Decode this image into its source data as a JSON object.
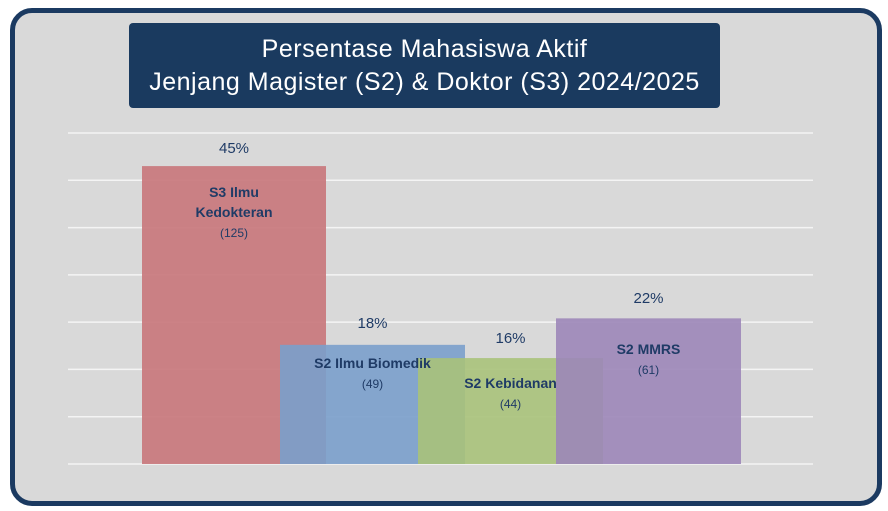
{
  "chart_data": {
    "type": "bar",
    "title": [
      "Persentase Mahasiswa Aktif",
      "Jenjang Magister (S2) & Doktor (S3) 2024/2025"
    ],
    "xlabel": "",
    "ylabel": "",
    "ylim": [
      0,
      50
    ],
    "grid": true,
    "bars": [
      {
        "name": "S3 Ilmu Kedokteran",
        "name_lines": [
          "S3 Ilmu",
          "Kedokteran"
        ],
        "percent": 45,
        "percent_label": "45%",
        "count_label": "(125)",
        "color": "#c8757a"
      },
      {
        "name": "S2 Ilmu Biomedik",
        "name_lines": [
          "S2 Ilmu Biomedik"
        ],
        "percent": 18,
        "percent_label": "18%",
        "count_label": "(49)",
        "color": "#7a9ecb"
      },
      {
        "name": "S2 Kebidanan",
        "name_lines": [
          "S2 Kebidanan"
        ],
        "percent": 16,
        "percent_label": "16%",
        "count_label": "(44)",
        "color": "#a8c27a"
      },
      {
        "name": "S2 MMRS",
        "name_lines": [
          "S2 MMRS"
        ],
        "percent": 22,
        "percent_label": "22%",
        "count_label": "(61)",
        "color": "#9c86b8"
      }
    ]
  }
}
